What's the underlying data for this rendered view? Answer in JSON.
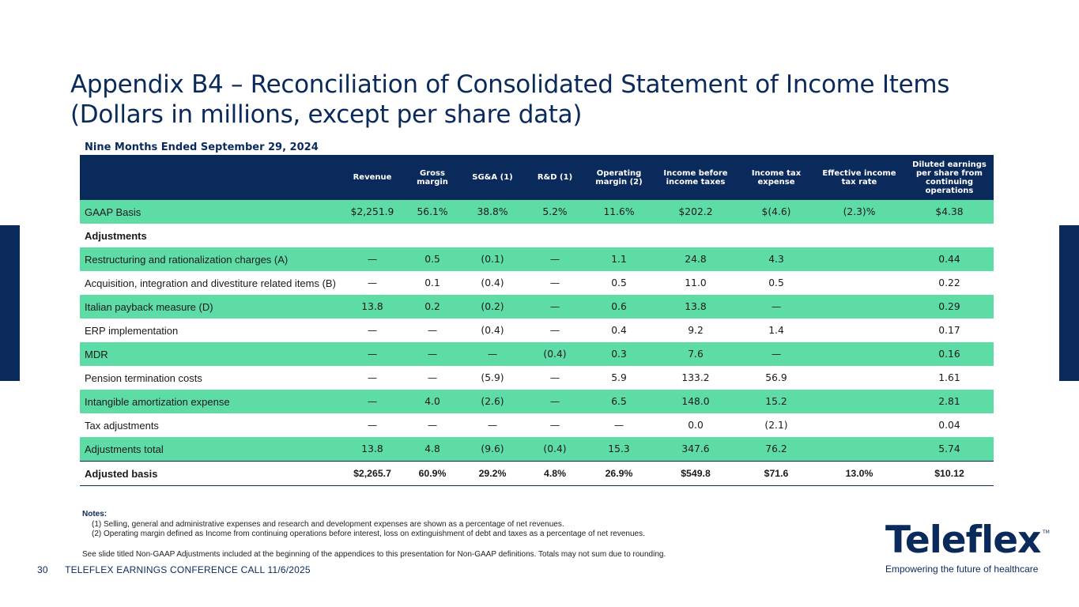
{
  "title": {
    "line1": "Appendix B4 – Reconciliation of Consolidated Statement of Income Items",
    "line2": "(Dollars in millions, except per share data)"
  },
  "period": "Nine Months Ended September 29, 2024",
  "table": {
    "headers": [
      "",
      "Revenue",
      "Gross margin",
      "SG&A (1)",
      "R&D (1)",
      "Operating margin (2)",
      "Income before income taxes",
      "Income tax expense",
      "Effective income tax rate",
      "Diluted earnings per share from continuing operations"
    ],
    "rows": [
      {
        "label": "GAAP Basis",
        "cells": [
          "$2,251.9",
          "56.1%",
          "38.8%",
          "5.2%",
          "11.6%",
          "$202.2",
          "$(4.6)",
          "(2.3)%",
          "$4.38"
        ]
      },
      {
        "label": "Adjustments",
        "cells": [
          "",
          "",
          "",
          "",
          "",
          "",
          "",
          "",
          ""
        ]
      },
      {
        "label": "Restructuring and rationalization charges (A)",
        "cells": [
          "—",
          "0.5",
          "(0.1)",
          "—",
          "1.1",
          "24.8",
          "4.3",
          "",
          "0.44"
        ]
      },
      {
        "label": "Acquisition, integration and divestiture related items (B)",
        "cells": [
          "—",
          "0.1",
          "(0.4)",
          "—",
          "0.5",
          "11.0",
          "0.5",
          "",
          "0.22"
        ]
      },
      {
        "label": "Italian payback measure (D)",
        "cells": [
          "13.8",
          "0.2",
          "(0.2)",
          "—",
          "0.6",
          "13.8",
          "—",
          "",
          "0.29"
        ]
      },
      {
        "label": "ERP implementation",
        "cells": [
          "—",
          "—",
          "(0.4)",
          "—",
          "0.4",
          "9.2",
          "1.4",
          "",
          "0.17"
        ]
      },
      {
        "label": "MDR",
        "cells": [
          "—",
          "—",
          "—",
          "(0.4)",
          "0.3",
          "7.6",
          "—",
          "",
          "0.16"
        ]
      },
      {
        "label": "Pension termination costs",
        "cells": [
          "—",
          "—",
          "(5.9)",
          "—",
          "5.9",
          "133.2",
          "56.9",
          "",
          "1.61"
        ]
      },
      {
        "label": "Intangible amortization expense",
        "cells": [
          "—",
          "4.0",
          "(2.6)",
          "—",
          "6.5",
          "148.0",
          "15.2",
          "",
          "2.81"
        ]
      },
      {
        "label": "Tax adjustments",
        "cells": [
          "—",
          "—",
          "—",
          "—",
          "—",
          "0.0",
          "(2.1)",
          "",
          "0.04"
        ]
      },
      {
        "label": "Adjustments total",
        "cells": [
          "13.8",
          "4.8",
          "(9.6)",
          "(0.4)",
          "15.3",
          "347.6",
          "76.2",
          "",
          "5.74"
        ]
      },
      {
        "label": "Adjusted basis",
        "cells": [
          "$2,265.7",
          "60.9%",
          "29.2%",
          "4.8%",
          "26.9%",
          "$549.8",
          "$71.6",
          "13.0%",
          "$10.12"
        ]
      }
    ]
  },
  "notes": {
    "heading": "Notes:",
    "items": [
      "(1) Selling, general and administrative expenses and research and development expenses are shown as a percentage of net revenues.",
      "(2) Operating margin defined as Income from continuing operations before interest, loss on extinguishment of debt and taxes as a percentage of net revenues."
    ],
    "see": "See slide titled Non-GAAP Adjustments included at the beginning of the appendices to this presentation for Non-GAAP definitions. Totals may not sum due to rounding."
  },
  "footer": {
    "page": "30",
    "text": "TELEFLEX EARNINGS CONFERENCE CALL 11/6/2025"
  },
  "logo": {
    "word": "Teleflex",
    "tm": "TM",
    "tagline": "Empowering the future of healthcare"
  },
  "colors": {
    "navy": "#0b2a5c",
    "green": "#5ddca6"
  }
}
